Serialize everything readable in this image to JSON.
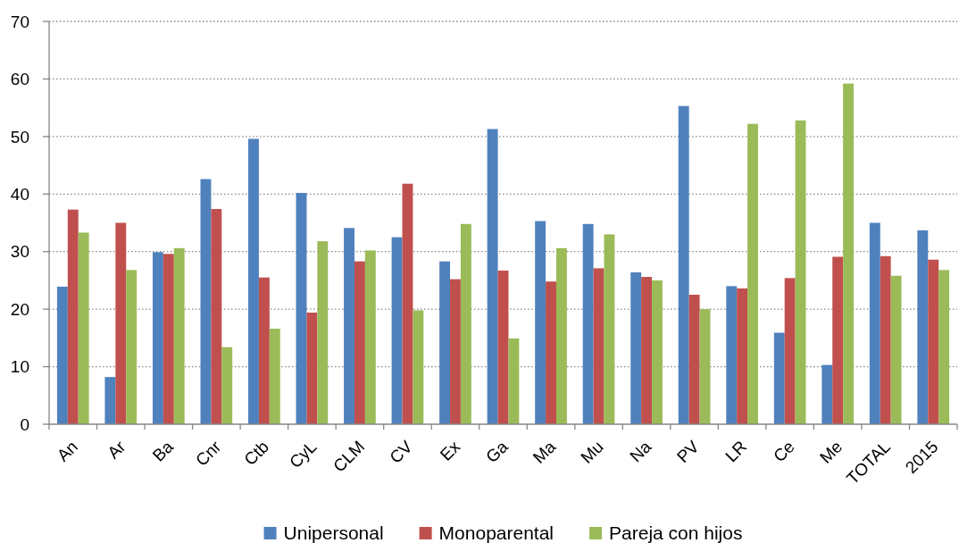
{
  "chart_data": {
    "type": "bar",
    "categories": [
      "An",
      "Ar",
      "Ba",
      "Cnr",
      "Ctb",
      "CyL",
      "CLM",
      "CV",
      "Ex",
      "Ga",
      "Ma",
      "Mu",
      "Na",
      "PV",
      "LR",
      "Ce",
      "Me",
      "TOTAL",
      "2015"
    ],
    "series": [
      {
        "name": "Unipersonal",
        "color": "#4f81bd",
        "values": [
          23.9,
          8.2,
          29.9,
          42.6,
          49.6,
          40.2,
          34.1,
          32.5,
          28.3,
          51.3,
          35.3,
          34.8,
          26.4,
          55.3,
          24.0,
          15.9,
          10.3,
          35.0,
          33.7
        ]
      },
      {
        "name": "Monoparental",
        "color": "#c0504d",
        "values": [
          37.3,
          35.0,
          29.6,
          37.4,
          25.5,
          19.4,
          28.3,
          41.8,
          25.2,
          26.7,
          24.8,
          27.1,
          25.6,
          22.5,
          23.6,
          25.4,
          29.1,
          29.2,
          28.6
        ]
      },
      {
        "name": "Pareja con hijos",
        "color": "#9bbb59",
        "values": [
          33.3,
          26.8,
          30.6,
          13.4,
          16.6,
          31.8,
          30.2,
          19.8,
          34.8,
          14.9,
          30.6,
          33.0,
          25.0,
          20.0,
          52.2,
          52.8,
          59.2,
          25.8,
          26.8
        ]
      }
    ],
    "ylim": [
      0,
      70
    ],
    "yticks": [
      0,
      10,
      20,
      30,
      40,
      50,
      60,
      70
    ],
    "grid": "y",
    "legend": "bottom"
  }
}
